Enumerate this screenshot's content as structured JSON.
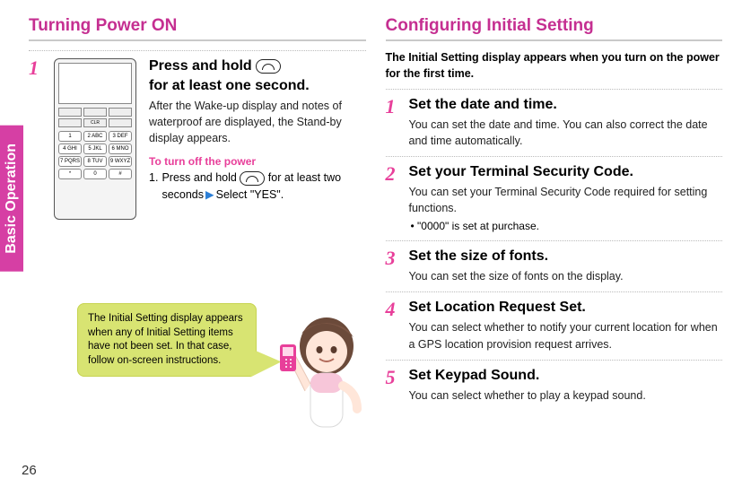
{
  "tab_label": "Basic Operation",
  "page_number": "26",
  "left": {
    "title": "Turning Power ON",
    "step1": {
      "num": "1",
      "head_pre": "Press and hold",
      "head_post": "for at least one second.",
      "desc": "After the Wake-up display and notes of waterproof are displayed, the Stand-by display appears.",
      "subhead": "To turn off the power",
      "sub_num": "1.",
      "sub_pre": "Press and hold",
      "sub_mid": "for at least two seconds",
      "sub_post": "Select \"YES\"."
    },
    "phone_keys": [
      "1",
      "2 ABC",
      "3 DEF",
      "4 GHI",
      "5 JKL",
      "6 MNO",
      "7 PQRS",
      "8 TUV",
      "9 WXYZ",
      "*",
      "0",
      "#"
    ],
    "callout": "The Initial Setting display appears when any of Initial Setting items have not been set.\nIn that case, follow on-screen instructions."
  },
  "right": {
    "title": "Configuring Initial Setting",
    "intro": "The Initial Setting display appears when you turn on the power for the first time.",
    "steps": [
      {
        "num": "1",
        "head": "Set the date and time.",
        "desc": "You can set the date and time. You can also correct the date and time automatically."
      },
      {
        "num": "2",
        "head": "Set your Terminal Security Code.",
        "desc": "You can set your Terminal Security Code required for setting functions.",
        "bullet": "• \"0000\" is set at purchase."
      },
      {
        "num": "3",
        "head": "Set the size of fonts.",
        "desc": "You can set the size of fonts on the display."
      },
      {
        "num": "4",
        "head": "Set Location Request Set.",
        "desc": "You can select whether to notify your current location for when a GPS location provision request arrives."
      },
      {
        "num": "5",
        "head": "Set Keypad Sound.",
        "desc": "You can select whether to play a keypad sound."
      }
    ]
  },
  "colors": {
    "accent": "#c52f91",
    "step_num": "#e83f9a",
    "callout_bg": "#d8e472",
    "arrow": "#2b7ed6"
  }
}
